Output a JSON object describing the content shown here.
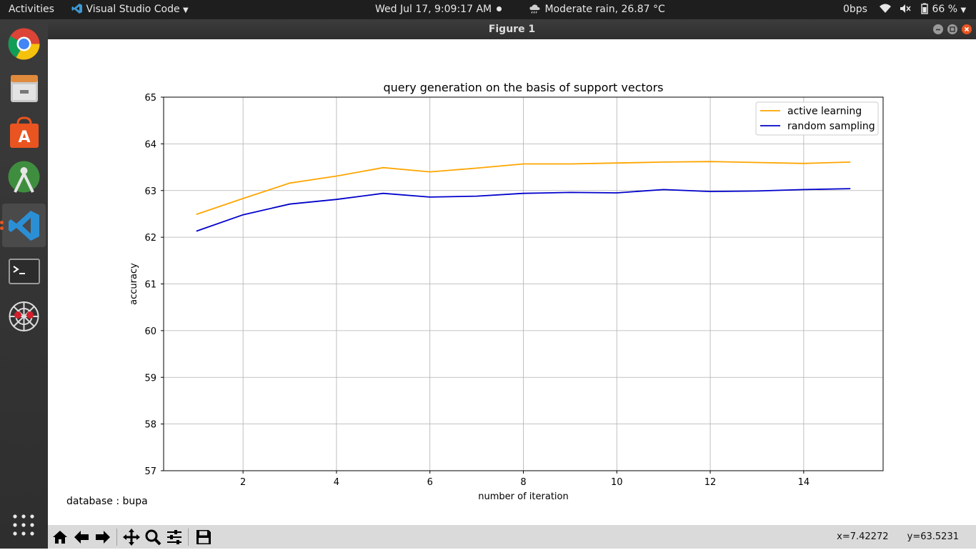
{
  "topbar": {
    "activities": "Activities",
    "app_menu": "Visual Studio Code",
    "datetime": "Wed Jul 17,  9:09:17 AM",
    "weather": "Moderate rain, 26.87 °C",
    "net_speed": "0bps",
    "battery": "66 %"
  },
  "dock": {
    "items": [
      "chrome-icon",
      "files-icon",
      "software-center-icon",
      "android-studio-icon",
      "vscode-icon",
      "terminal-icon",
      "spider-icon"
    ],
    "apps_grid": "show-apps-icon"
  },
  "window": {
    "title": "Figure 1"
  },
  "figure": {
    "annotation": "database : bupa"
  },
  "chart_data": {
    "type": "line",
    "title": "query generation on the basis of support vectors",
    "xlabel": "number of iteration",
    "ylabel": "accuracy",
    "xlim": [
      0.3,
      15.7
    ],
    "ylim": [
      57,
      65
    ],
    "xticks": [
      2,
      4,
      6,
      8,
      10,
      12,
      14
    ],
    "yticks": [
      57,
      58,
      59,
      60,
      61,
      62,
      63,
      64,
      65
    ],
    "grid": true,
    "legend_position": "top-right",
    "x": [
      1,
      2,
      3,
      4,
      5,
      6,
      7,
      8,
      9,
      10,
      11,
      12,
      13,
      14,
      15
    ],
    "series": [
      {
        "name": "active learning",
        "color": "#ffa500",
        "values": [
          62.49,
          62.83,
          63.16,
          63.31,
          63.49,
          63.4,
          63.48,
          63.57,
          63.57,
          63.59,
          63.61,
          63.62,
          63.6,
          63.58,
          63.61
        ]
      },
      {
        "name": "random sampling",
        "color": "#0000cc",
        "values": [
          62.13,
          62.48,
          62.71,
          62.81,
          62.94,
          62.86,
          62.88,
          62.94,
          62.96,
          62.95,
          63.02,
          62.98,
          62.99,
          63.02,
          63.04
        ]
      }
    ]
  },
  "toolbar": {
    "buttons": [
      "home-icon",
      "back-icon",
      "forward-icon",
      "pan-icon",
      "zoom-icon",
      "configure-subplots-icon",
      "save-icon"
    ],
    "x_readout": "x=7.42272",
    "y_readout": "y=63.5231"
  }
}
